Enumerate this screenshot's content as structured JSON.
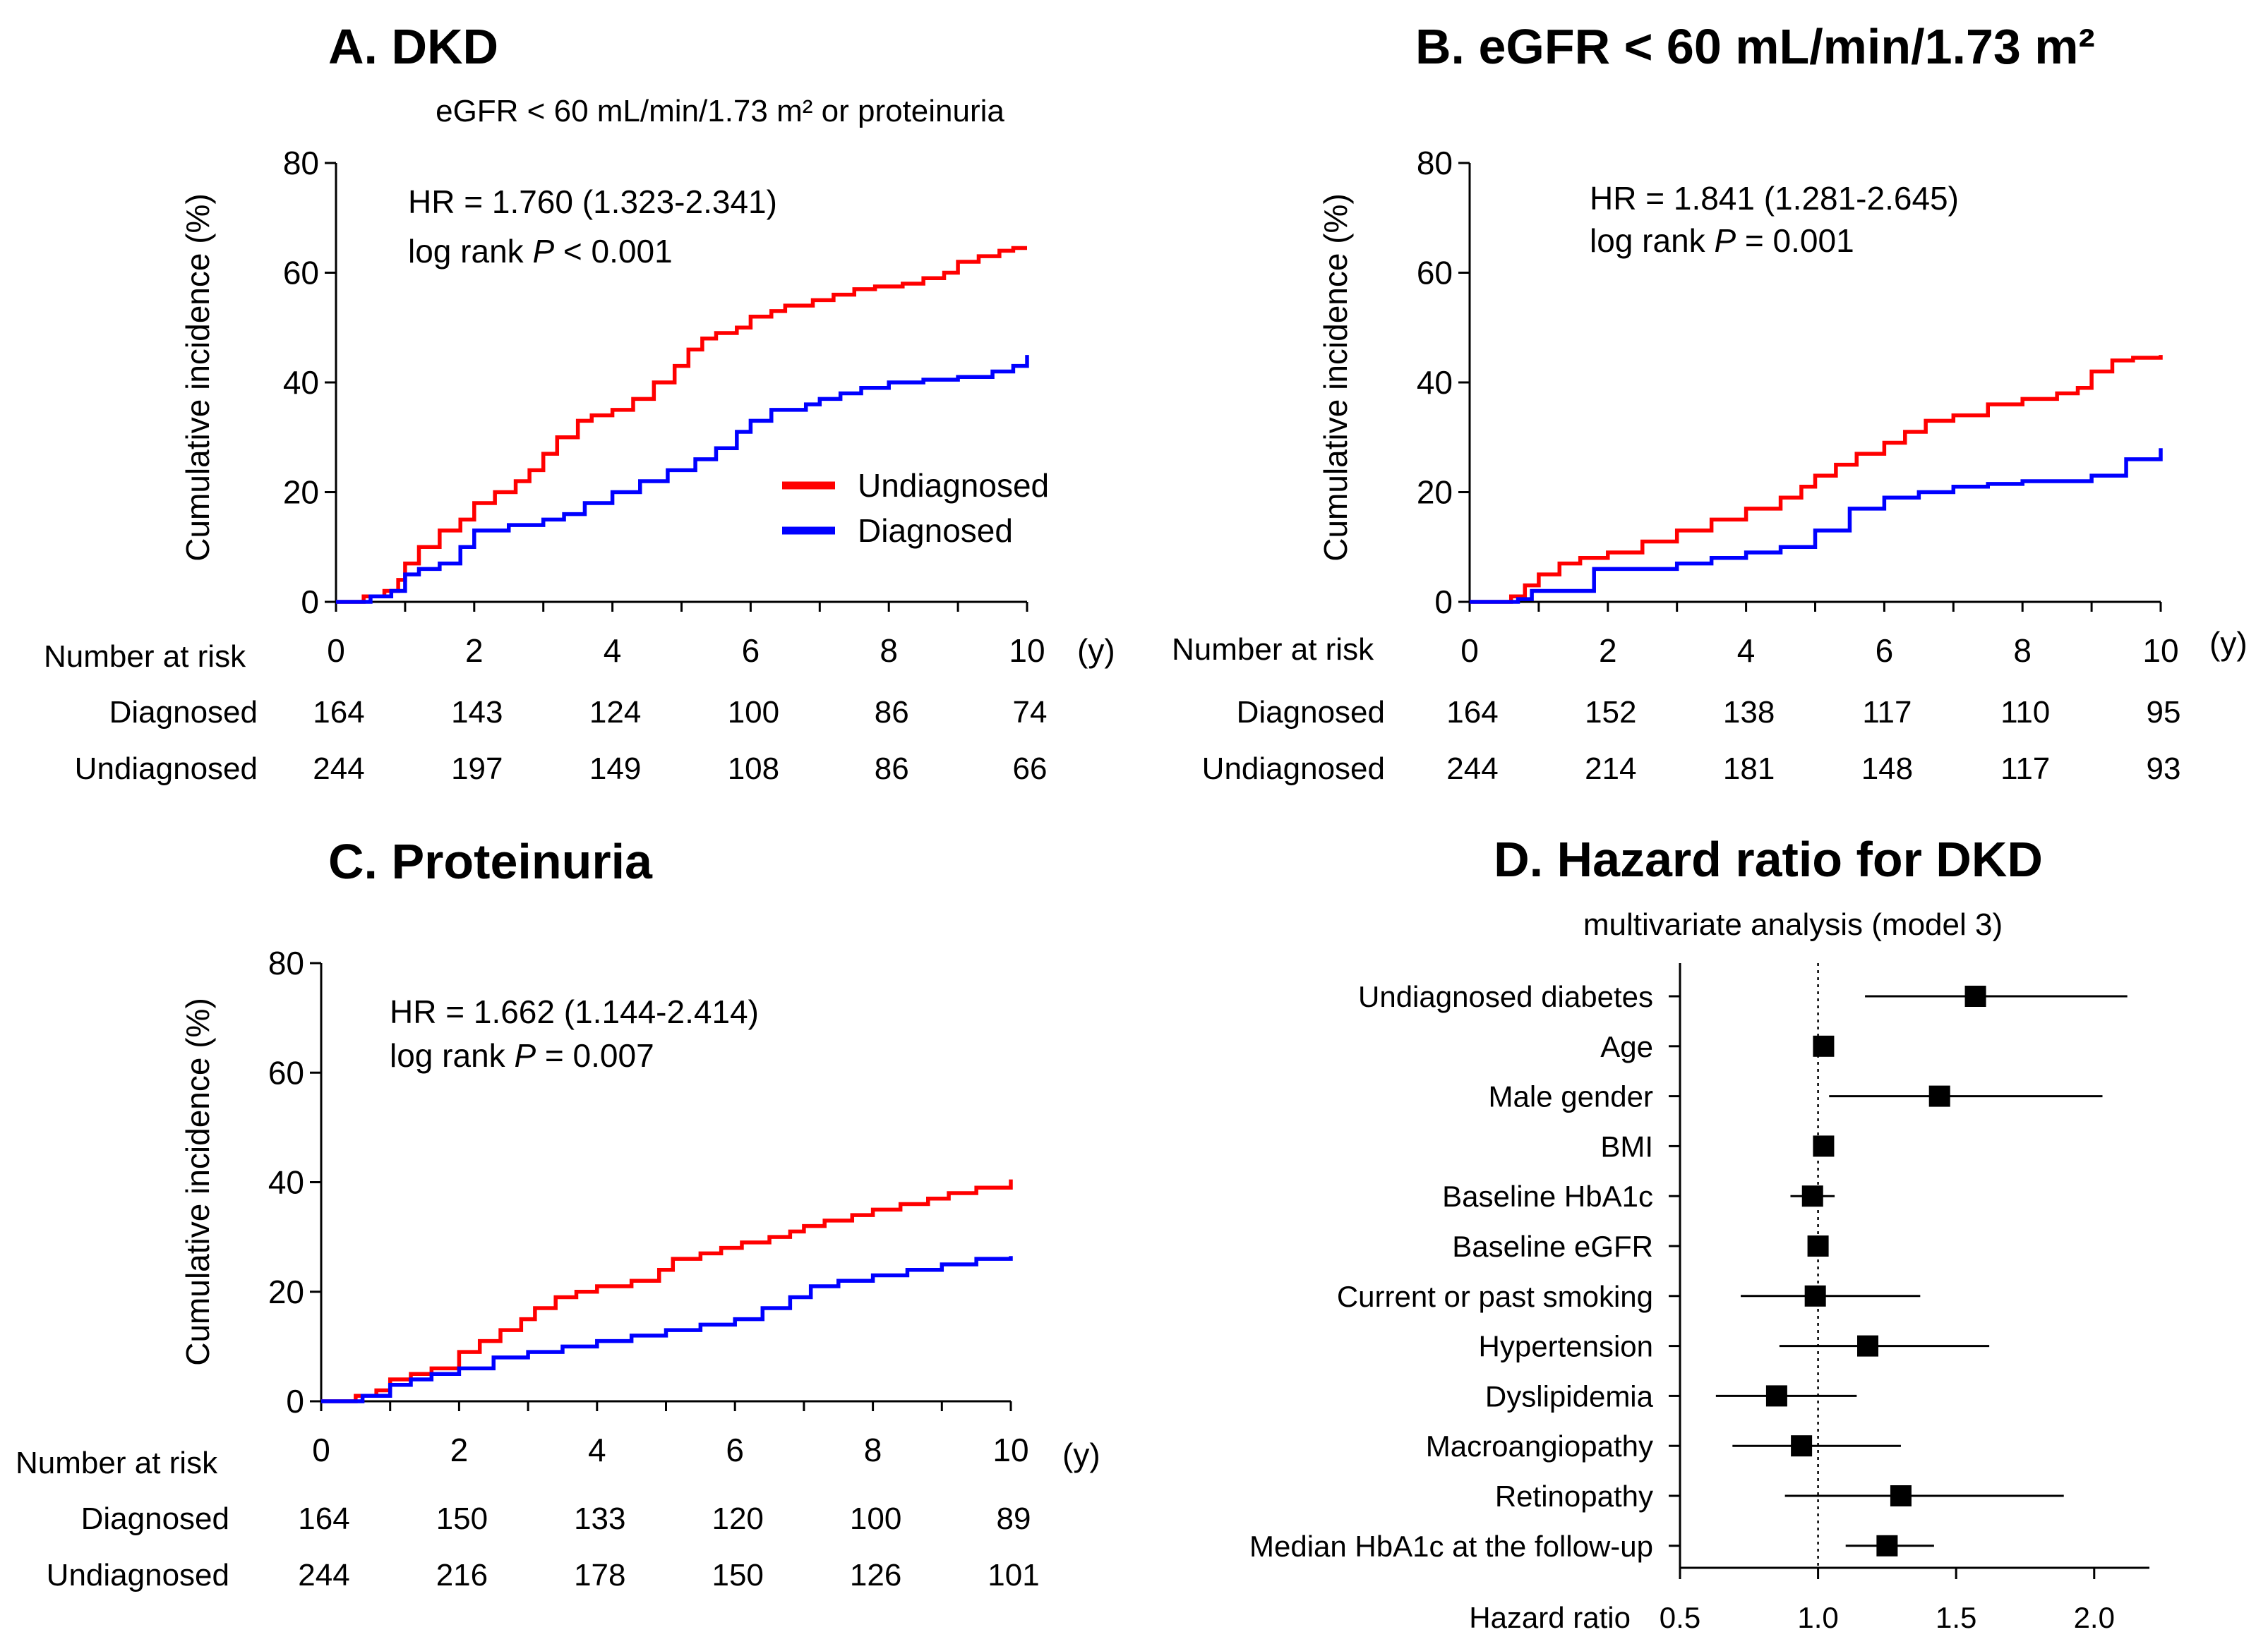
{
  "colors": {
    "undiagnosed": "#ff0000",
    "diagnosed": "#0000ff",
    "axis": "#000000"
  },
  "legend": {
    "undiagnosed": "Undiagnosed",
    "diagnosed": "Diagnosed"
  },
  "chart_data": [
    {
      "id": "A",
      "type": "line",
      "title": "A. DKD",
      "subtitle": "eGFR < 60 mL/min/1.73 m² or proteinuria",
      "ylabel": "Cumulative incidence (%)",
      "xunit": "(y)",
      "xlim": [
        0,
        10
      ],
      "ylim": [
        0,
        80
      ],
      "xticks": [
        0,
        2,
        4,
        6,
        8,
        10
      ],
      "yticks": [
        0,
        20,
        40,
        60,
        80
      ],
      "hr_text": "HR = 1.760 (1.323-2.341)",
      "logrank_label": "log rank",
      "p_symbol": "P",
      "p_text": "< 0.001",
      "series": [
        {
          "name": "Undiagnosed",
          "color": "#ff0000",
          "x": [
            0,
            0.4,
            0.7,
            0.9,
            1.0,
            1.2,
            1.5,
            1.8,
            2.0,
            2.3,
            2.6,
            2.8,
            3.0,
            3.2,
            3.5,
            3.7,
            4.0,
            4.3,
            4.6,
            4.9,
            5.1,
            5.3,
            5.5,
            5.8,
            6.0,
            6.3,
            6.5,
            6.9,
            7.2,
            7.5,
            7.8,
            8.2,
            8.5,
            8.8,
            9.0,
            9.3,
            9.6,
            9.8,
            10.0
          ],
          "y": [
            0,
            1,
            2,
            4,
            7,
            10,
            13,
            15,
            18,
            20,
            22,
            24,
            27,
            30,
            33,
            34,
            35,
            37,
            40,
            43,
            46,
            48,
            49,
            50,
            52,
            53,
            54,
            55,
            56,
            57,
            57.5,
            58,
            59,
            60,
            62,
            63,
            64,
            64.5,
            64.5
          ]
        },
        {
          "name": "Diagnosed",
          "color": "#0000ff",
          "x": [
            0,
            0.5,
            0.8,
            1.0,
            1.2,
            1.5,
            1.8,
            2.0,
            2.5,
            3.0,
            3.3,
            3.6,
            4.0,
            4.4,
            4.8,
            5.2,
            5.5,
            5.8,
            6.0,
            6.3,
            6.8,
            7.0,
            7.3,
            7.6,
            8.0,
            8.5,
            9.0,
            9.5,
            9.8,
            10.0
          ],
          "y": [
            0,
            1,
            2,
            5,
            6,
            7,
            10,
            13,
            14,
            15,
            16,
            18,
            20,
            22,
            24,
            26,
            28,
            31,
            33,
            35,
            36,
            37,
            38,
            39,
            40,
            40.5,
            41,
            42,
            43,
            45
          ]
        }
      ],
      "risk_table": {
        "header": "Number at risk",
        "rows": [
          {
            "label": "Diagnosed",
            "values": [
              "164",
              "143",
              "124",
              "100",
              "86",
              "74"
            ]
          },
          {
            "label": "Undiagnosed",
            "values": [
              "244",
              "197",
              "149",
              "108",
              "86",
              "66"
            ]
          }
        ]
      },
      "show_legend": true
    },
    {
      "id": "B",
      "type": "line",
      "title": "B. eGFR < 60 mL/min/1.73 m²",
      "ylabel": "Cumulative incidence (%)",
      "xunit": "(y)",
      "xlim": [
        0,
        10
      ],
      "ylim": [
        0,
        80
      ],
      "xticks": [
        0,
        2,
        4,
        6,
        8,
        10
      ],
      "yticks": [
        0,
        20,
        40,
        60,
        80
      ],
      "hr_text": "HR = 1.841 (1.281-2.645)",
      "logrank_label": "log rank",
      "p_symbol": "P",
      "p_text": "= 0.001",
      "series": [
        {
          "name": "Undiagnosed",
          "color": "#ff0000",
          "x": [
            0,
            0.6,
            0.8,
            1.0,
            1.3,
            1.6,
            2.0,
            2.5,
            3.0,
            3.5,
            4.0,
            4.5,
            4.8,
            5.0,
            5.3,
            5.6,
            6.0,
            6.3,
            6.6,
            7.0,
            7.5,
            8.0,
            8.5,
            8.8,
            9.0,
            9.3,
            9.6,
            10.0
          ],
          "y": [
            0,
            1,
            3,
            5,
            7,
            8,
            9,
            11,
            13,
            15,
            17,
            19,
            21,
            23,
            25,
            27,
            29,
            31,
            33,
            34,
            36,
            37,
            38,
            39,
            42,
            44,
            44.5,
            45
          ]
        },
        {
          "name": "Diagnosed",
          "color": "#0000ff",
          "x": [
            0,
            0.7,
            0.9,
            1.5,
            1.8,
            2.5,
            3.0,
            3.5,
            4.0,
            4.5,
            5.0,
            5.5,
            6.0,
            6.5,
            7.0,
            7.5,
            8.0,
            8.5,
            9.0,
            9.5,
            10.0
          ],
          "y": [
            0,
            0.5,
            2,
            2,
            6,
            6,
            7,
            8,
            9,
            10,
            13,
            17,
            19,
            20,
            21,
            21.5,
            22,
            22,
            23,
            26,
            28
          ]
        }
      ],
      "risk_table": {
        "header": "Number at risk",
        "rows": [
          {
            "label": "Diagnosed",
            "values": [
              "164",
              "152",
              "138",
              "117",
              "110",
              "95"
            ]
          },
          {
            "label": "Undiagnosed",
            "values": [
              "244",
              "214",
              "181",
              "148",
              "117",
              "93"
            ]
          }
        ]
      },
      "show_legend": false
    },
    {
      "id": "C",
      "type": "line",
      "title": "C. Proteinuria",
      "ylabel": "Cumulative incidence (%)",
      "xunit": "(y)",
      "xlim": [
        0,
        10
      ],
      "ylim": [
        0,
        80
      ],
      "xticks": [
        0,
        2,
        4,
        6,
        8,
        10
      ],
      "yticks": [
        0,
        20,
        40,
        60,
        80
      ],
      "hr_text": "HR = 1.662 (1.144-2.414)",
      "logrank_label": "log rank",
      "p_symbol": "P",
      "p_text": "= 0.007",
      "series": [
        {
          "name": "Undiagnosed",
          "color": "#ff0000",
          "x": [
            0,
            0.5,
            0.8,
            1.0,
            1.3,
            1.6,
            2.0,
            2.3,
            2.6,
            2.9,
            3.1,
            3.4,
            3.7,
            4.0,
            4.5,
            4.9,
            5.1,
            5.5,
            5.8,
            6.1,
            6.5,
            6.8,
            7.0,
            7.3,
            7.7,
            8.0,
            8.4,
            8.8,
            9.1,
            9.5,
            10.0
          ],
          "y": [
            0,
            1,
            2,
            4,
            5,
            6,
            9,
            11,
            13,
            15,
            17,
            19,
            20,
            21,
            22,
            24,
            26,
            27,
            28,
            29,
            30,
            31,
            32,
            33,
            34,
            35,
            36,
            37,
            38,
            39,
            40.5
          ]
        },
        {
          "name": "Diagnosed",
          "color": "#0000ff",
          "x": [
            0,
            0.6,
            1.0,
            1.3,
            1.6,
            2.0,
            2.5,
            3.0,
            3.5,
            4.0,
            4.5,
            5.0,
            5.5,
            6.0,
            6.4,
            6.8,
            7.1,
            7.5,
            8.0,
            8.5,
            9.0,
            9.5,
            10.0
          ],
          "y": [
            0,
            1,
            3,
            4,
            5,
            6,
            8,
            9,
            10,
            11,
            12,
            13,
            14,
            15,
            17,
            19,
            21,
            22,
            23,
            24,
            25,
            26,
            26.5
          ]
        }
      ],
      "risk_table": {
        "header": "Number at risk",
        "rows": [
          {
            "label": "Diagnosed",
            "values": [
              "164",
              "150",
              "133",
              "120",
              "100",
              "89"
            ]
          },
          {
            "label": "Undiagnosed",
            "values": [
              "244",
              "216",
              "178",
              "150",
              "126",
              "101"
            ]
          }
        ]
      },
      "show_legend": false
    },
    {
      "id": "D",
      "type": "scatter",
      "subtype": "forest",
      "title": "D. Hazard ratio for DKD",
      "subtitle": "multivariate analysis (model 3)",
      "xlabel": "Hazard ratio",
      "xlim": [
        0.5,
        2.2
      ],
      "xticks": [
        0.5,
        1.0,
        1.5,
        2.0
      ],
      "xtick_labels": [
        "0.5",
        "1.0",
        "1.5",
        "2.0"
      ],
      "reference_line": 1.0,
      "rows": [
        {
          "label": "Undiagnosed diabetes",
          "hr": 1.57,
          "lo": 1.17,
          "hi": 2.12
        },
        {
          "label": "Age",
          "hr": 1.02,
          "lo": 1.0,
          "hi": 1.04
        },
        {
          "label": "Male gender",
          "hr": 1.44,
          "lo": 1.04,
          "hi": 2.03
        },
        {
          "label": "BMI",
          "hr": 1.02,
          "lo": 1.0,
          "hi": 1.04
        },
        {
          "label": "Baseline HbA1c",
          "hr": 0.98,
          "lo": 0.9,
          "hi": 1.06
        },
        {
          "label": "Baseline eGFR",
          "hr": 1.0,
          "lo": 0.99,
          "hi": 1.01
        },
        {
          "label": "Current or past smoking",
          "hr": 0.99,
          "lo": 0.72,
          "hi": 1.37
        },
        {
          "label": "Hypertension",
          "hr": 1.18,
          "lo": 0.86,
          "hi": 1.62
        },
        {
          "label": "Dyslipidemia",
          "hr": 0.85,
          "lo": 0.63,
          "hi": 1.14
        },
        {
          "label": "Macroangiopathy",
          "hr": 0.94,
          "lo": 0.69,
          "hi": 1.3
        },
        {
          "label": "Retinopathy",
          "hr": 1.3,
          "lo": 0.88,
          "hi": 1.89
        },
        {
          "label": "Median HbA1c at the follow-up",
          "hr": 1.25,
          "lo": 1.1,
          "hi": 1.42
        }
      ]
    }
  ]
}
